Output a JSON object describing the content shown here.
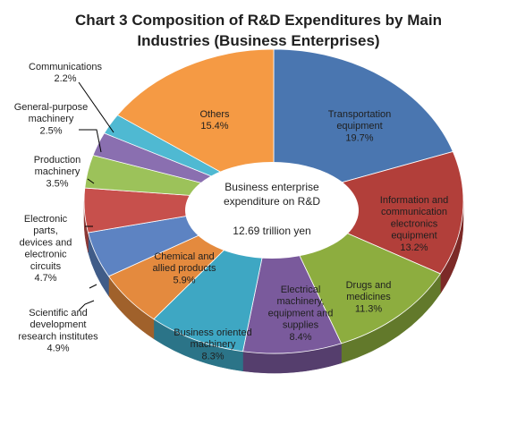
{
  "chart_data": {
    "type": "pie",
    "title_lines": [
      "Chart 3 Composition of R&D Expenditures by Main",
      "Industries (Business Enterprises)"
    ],
    "center_label": {
      "lines": [
        "Business enterprise",
        "expenditure on R&D"
      ],
      "total": "12.69  trillion yen"
    },
    "slices": [
      {
        "name": "Transportation equipment",
        "label_lines": [
          "Transportation",
          "equipment"
        ],
        "pct_text": "19.7%",
        "value": 19.7,
        "color": "#4a76b0",
        "side": "#31527e"
      },
      {
        "name": "Information and communication electronics equipment",
        "label_lines": [
          "Information and",
          "communication",
          "electronics",
          "equipment"
        ],
        "pct_text": "13.2%",
        "value": 13.2,
        "color": "#b23f3a",
        "side": "#7c2a27"
      },
      {
        "name": "Drugs and medicines",
        "label_lines": [
          "Drugs and",
          "medicines"
        ],
        "pct_text": "11.3%",
        "value": 11.3,
        "color": "#8dad3f",
        "side": "#62792b"
      },
      {
        "name": "Electrical machinery, equipment and supplies",
        "label_lines": [
          "Electrical",
          "machinery,",
          "equipment and",
          "supplies"
        ],
        "pct_text": "8.4%",
        "value": 8.4,
        "color": "#7a5a9c",
        "side": "#553e6d"
      },
      {
        "name": "Business oriented machinery",
        "label_lines": [
          "Business oriented",
          "machinery"
        ],
        "pct_text": "8.3%",
        "value": 8.3,
        "color": "#3ea7c3",
        "side": "#2b7488"
      },
      {
        "name": "Chemical and allied products",
        "label_lines": [
          "Chemical and",
          "allied products"
        ],
        "pct_text": "5.9%",
        "value": 5.9,
        "color": "#e48a3e",
        "side": "#a0612b"
      },
      {
        "name": "Scientific and development research institutes",
        "label_lines": [
          "Scientific and",
          "development",
          "research institutes"
        ],
        "pct_text": "4.9%",
        "value": 4.9,
        "color": "#5d83c2",
        "side": "#405c88"
      },
      {
        "name": "Electronic parts, devices and electronic circuits",
        "label_lines": [
          "Electronic",
          "parts,",
          "devices and",
          "electronic",
          "circuits"
        ],
        "pct_text": "4.7%",
        "value": 4.7,
        "color": "#c7504c",
        "side": "#8b3835"
      },
      {
        "name": "Production machinery",
        "label_lines": [
          "Production",
          "machinery"
        ],
        "pct_text": "3.5%",
        "value": 3.5,
        "color": "#9cc25a",
        "side": "#6d883f"
      },
      {
        "name": "General-purpose machinery",
        "label_lines": [
          "General-purpose",
          "machinery"
        ],
        "pct_text": "2.5%",
        "value": 2.5,
        "color": "#8a6fb0",
        "side": "#614e7b"
      },
      {
        "name": "Communications",
        "label_lines": [
          "Communications"
        ],
        "pct_text": "2.2%",
        "value": 2.2,
        "color": "#4fb9d2",
        "side": "#378193"
      },
      {
        "name": "Others",
        "label_lines": [
          "Others"
        ],
        "pct_text": "15.4%",
        "value": 15.4,
        "color": "#f59a44",
        "side": "#ac6c30"
      }
    ]
  }
}
